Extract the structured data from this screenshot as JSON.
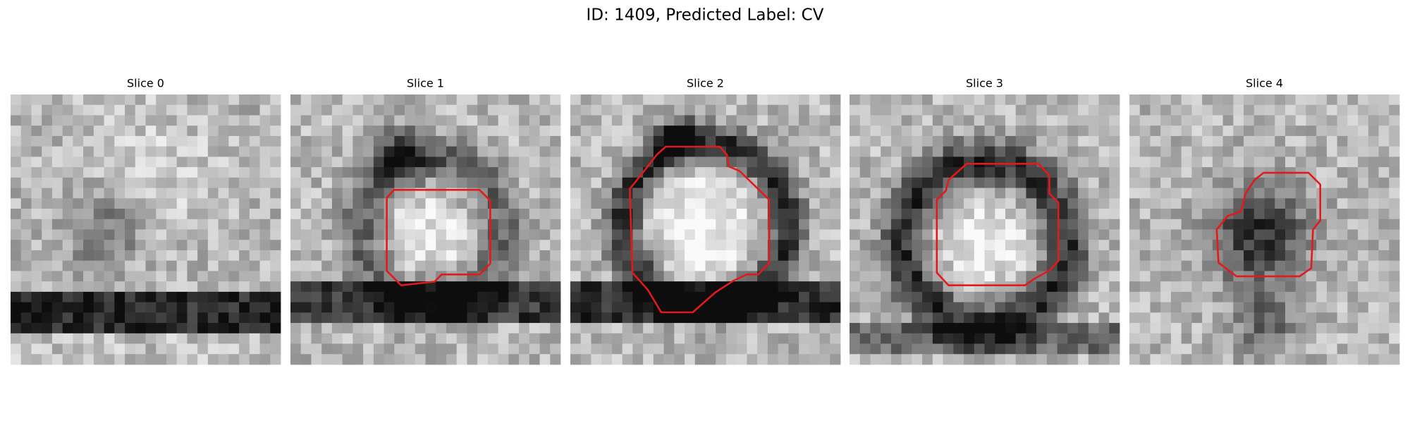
{
  "header": {
    "title": "ID: 1409, Predicted Label: CV"
  },
  "panels": [
    {
      "title": "Slice 0"
    },
    {
      "title": "Slice 1"
    },
    {
      "title": "Slice 2"
    },
    {
      "title": "Slice 3"
    },
    {
      "title": "Slice 4"
    }
  ]
}
